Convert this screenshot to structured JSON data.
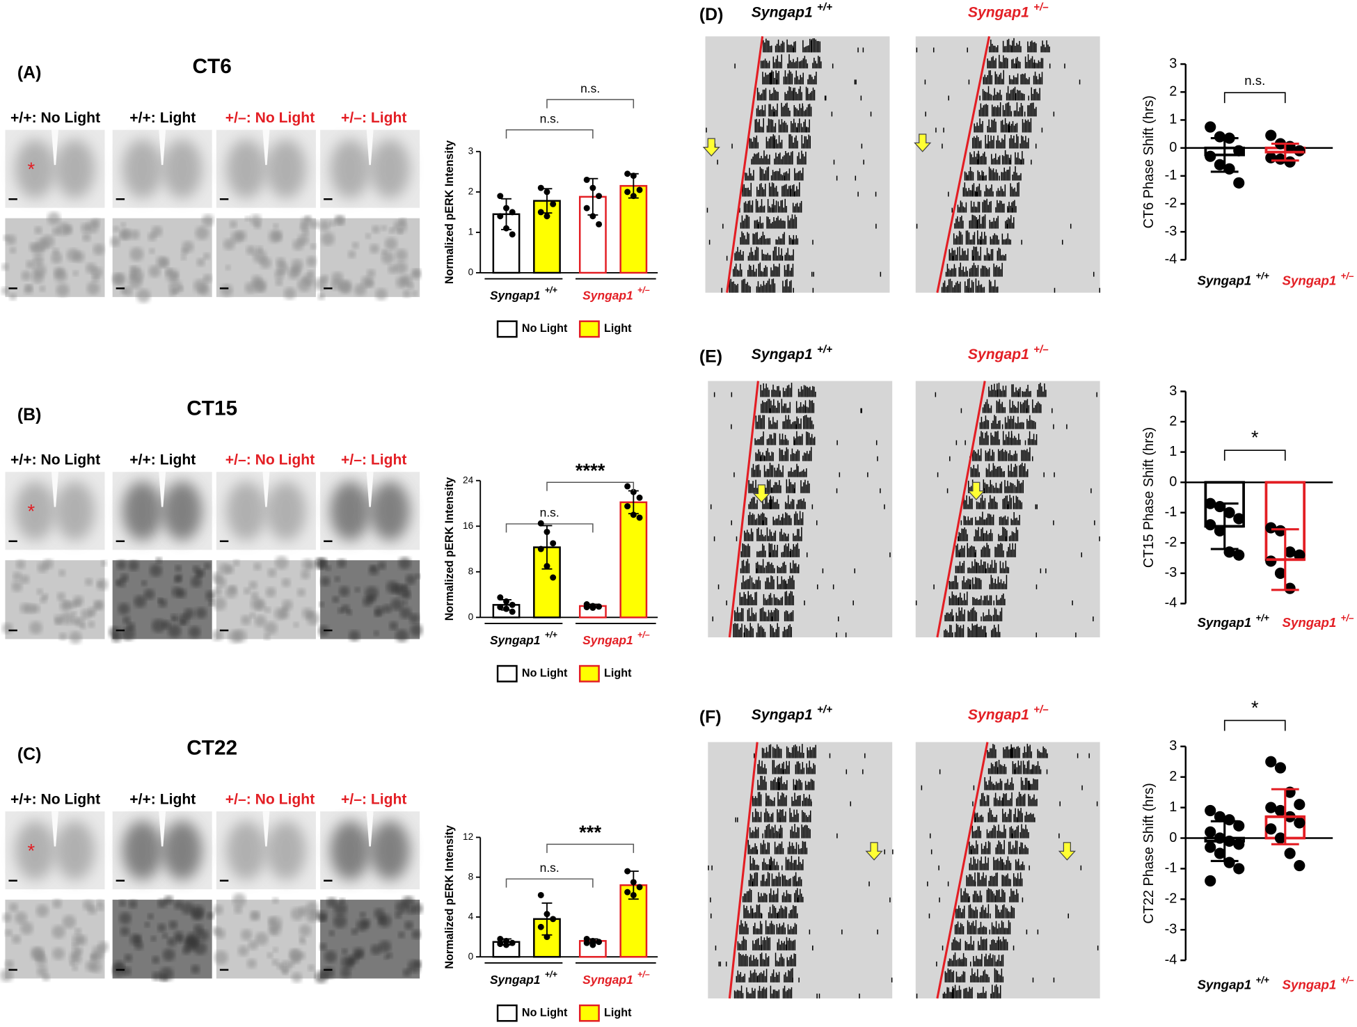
{
  "chart_data": [
    {
      "type": "bar",
      "panel": "(A)",
      "title": "CT6",
      "image_labels": [
        {
          "text": "+/+: No Light",
          "color": "#000000"
        },
        {
          "text": "+/+: Light",
          "color": "#000000"
        },
        {
          "text": "+/–: No Light",
          "color": "#e31e24"
        },
        {
          "text": "+/–: Light",
          "color": "#e31e24"
        }
      ],
      "image_marker": "*",
      "ylabel": "Normalized pERK Intensity",
      "categories": [
        {
          "name": "Syngap1",
          "superscript": "+/+",
          "color": "#000000"
        },
        {
          "name": "Syngap1",
          "superscript": "+/–",
          "color": "#e31e24"
        }
      ],
      "series": [
        {
          "name": "No Light",
          "color": "#ffffff",
          "edge": "#000000",
          "values": [
            1.45,
            1.88
          ],
          "errors": [
            0.38,
            0.45
          ],
          "points": [
            [
              1.9,
              1.6,
              1.5,
              1.4,
              1.1,
              0.95
            ],
            [
              2.3,
              2.1,
              1.9,
              1.6,
              1.4,
              1.2
            ]
          ],
          "comparison": "n.s."
        },
        {
          "name": "Light",
          "color": "#ffff00",
          "edge": "#e31e24",
          "values": [
            1.78,
            2.15
          ],
          "errors": [
            0.3,
            0.3
          ],
          "points": [
            [
              2.1,
              2.0,
              1.7,
              1.5,
              1.4
            ],
            [
              2.45,
              2.4,
              2.05,
              2.0,
              1.9
            ]
          ],
          "comparison": "n.s."
        }
      ],
      "ylim": [
        0,
        3
      ],
      "yticks": [
        0,
        1,
        2,
        3
      ]
    },
    {
      "type": "bar",
      "panel": "(B)",
      "title": "CT15",
      "image_labels": [
        {
          "text": "+/+: No Light",
          "color": "#000000"
        },
        {
          "text": "+/+: Light",
          "color": "#000000"
        },
        {
          "text": "+/–: No Light",
          "color": "#e31e24"
        },
        {
          "text": "+/–: Light",
          "color": "#e31e24"
        }
      ],
      "image_marker": "*",
      "ylabel": "Normalized pERK Intensity",
      "categories": [
        {
          "name": "Syngap1",
          "superscript": "+/+",
          "color": "#000000"
        },
        {
          "name": "Syngap1",
          "superscript": "+/–",
          "color": "#e31e24"
        }
      ],
      "series": [
        {
          "name": "No Light",
          "color": "#ffffff",
          "edge": "#000000",
          "values": [
            2.2,
            2.0
          ],
          "errors": [
            0.9,
            0.3
          ],
          "points": [
            [
              3.5,
              2.8,
              2.2,
              1.8,
              1.5,
              1.0
            ],
            [
              2.3,
              2.0,
              1.9,
              1.8,
              1.7
            ]
          ],
          "comparison": "n.s."
        },
        {
          "name": "Light",
          "color": "#ffff00",
          "edge": "#e31e24",
          "values": [
            12.3,
            20.2
          ],
          "errors": [
            3.8,
            2.0
          ],
          "points": [
            [
              16.5,
              15,
              13,
              12,
              9,
              7
            ],
            [
              23,
              22,
              21,
              19.5,
              18,
              17.5
            ]
          ],
          "comparison": "****"
        }
      ],
      "ylim": [
        0,
        24
      ],
      "yticks": [
        0,
        8,
        16,
        24
      ]
    },
    {
      "type": "bar",
      "panel": "(C)",
      "title": "CT22",
      "image_labels": [
        {
          "text": "+/+: No Light",
          "color": "#000000"
        },
        {
          "text": "+/+: Light",
          "color": "#000000"
        },
        {
          "text": "+/–: No Light",
          "color": "#e31e24"
        },
        {
          "text": "+/–: Light",
          "color": "#e31e24"
        }
      ],
      "image_marker": "*",
      "ylabel": "Normalized pERK Intensity",
      "categories": [
        {
          "name": "Syngap1",
          "superscript": "+/+",
          "color": "#000000"
        },
        {
          "name": "Syngap1",
          "superscript": "+/–",
          "color": "#e31e24"
        }
      ],
      "series": [
        {
          "name": "No Light",
          "color": "#ffffff",
          "edge": "#000000",
          "values": [
            1.5,
            1.6
          ],
          "errors": [
            0.3,
            0.2
          ],
          "points": [
            [
              1.8,
              1.6,
              1.4,
              1.3,
              1.2
            ],
            [
              1.8,
              1.6,
              1.5,
              1.4,
              1.2
            ]
          ],
          "comparison": "n.s."
        },
        {
          "name": "Light",
          "color": "#ffff00",
          "edge": "#e31e24",
          "values": [
            3.8,
            7.2
          ],
          "errors": [
            1.6,
            1.4
          ],
          "points": [
            [
              6.2,
              4.3,
              3.8,
              3.0,
              2.0
            ],
            [
              8.6,
              7.5,
              7.0,
              6.5,
              6.2
            ]
          ],
          "comparison": "***"
        }
      ],
      "ylim": [
        0,
        12
      ],
      "yticks": [
        0,
        4,
        8,
        12
      ]
    },
    {
      "type": "bar",
      "panel": "(D)",
      "categories": [
        {
          "name": "Syngap1",
          "superscript": "+/+",
          "color": "#000000"
        },
        {
          "name": "Syngap1",
          "superscript": "+/–",
          "color": "#e31e24"
        }
      ],
      "ylabel": "CT6 Phase Shift  (hrs)",
      "values": [
        -0.25,
        -0.15
      ],
      "errors": [
        0.6,
        0.3
      ],
      "points": [
        [
          0.75,
          0.4,
          0.35,
          -0.1,
          -0.3,
          -0.6,
          -0.75,
          -1.25
        ],
        [
          0.45,
          0.15,
          0.05,
          -0.1,
          -0.35,
          -0.4,
          -0.5
        ]
      ],
      "comparison": "n.s.",
      "ylim": [
        -4,
        3
      ],
      "yticks": [
        -4,
        -3,
        -2,
        -1,
        0,
        1,
        2,
        3
      ]
    },
    {
      "type": "bar",
      "panel": "(E)",
      "categories": [
        {
          "name": "Syngap1",
          "superscript": "+/+",
          "color": "#000000"
        },
        {
          "name": "Syngap1",
          "superscript": "+/–",
          "color": "#e31e24"
        }
      ],
      "ylabel": "CT15  Phase Shift  (hrs)",
      "values": [
        -1.45,
        -2.55
      ],
      "errors": [
        0.75,
        1.0
      ],
      "points": [
        [
          -0.7,
          -0.8,
          -1.0,
          -1.2,
          -1.4,
          -1.6,
          -2.3,
          -2.4
        ],
        [
          -1.5,
          -1.6,
          -2.3,
          -2.4,
          -2.6,
          -3.0,
          -3.5
        ]
      ],
      "comparison": "*",
      "ylim": [
        -4,
        3
      ],
      "yticks": [
        -4,
        -3,
        -2,
        -1,
        0,
        1,
        2,
        3
      ]
    },
    {
      "type": "bar",
      "panel": "(F)",
      "categories": [
        {
          "name": "Syngap1",
          "superscript": "+/+",
          "color": "#000000"
        },
        {
          "name": "Syngap1",
          "superscript": "+/–",
          "color": "#e31e24"
        }
      ],
      "ylabel": "CT22  Phase Shift  (hrs)",
      "values": [
        -0.1,
        0.7
      ],
      "errors": [
        0.65,
        0.9
      ],
      "points": [
        [
          0.9,
          0.7,
          0.6,
          0.4,
          0.2,
          0,
          -0.1,
          -0.2,
          -0.3,
          -0.5,
          -0.8,
          -1.0,
          -1.4
        ],
        [
          2.5,
          2.3,
          1.5,
          1.1,
          1.0,
          0.9,
          0.7,
          0.5,
          0.3,
          0,
          -0.5,
          -0.9
        ]
      ],
      "comparison": "*",
      "ylim": [
        -4,
        3
      ],
      "yticks": [
        -4,
        -3,
        -2,
        -1,
        0,
        1,
        2,
        3
      ]
    }
  ]
}
